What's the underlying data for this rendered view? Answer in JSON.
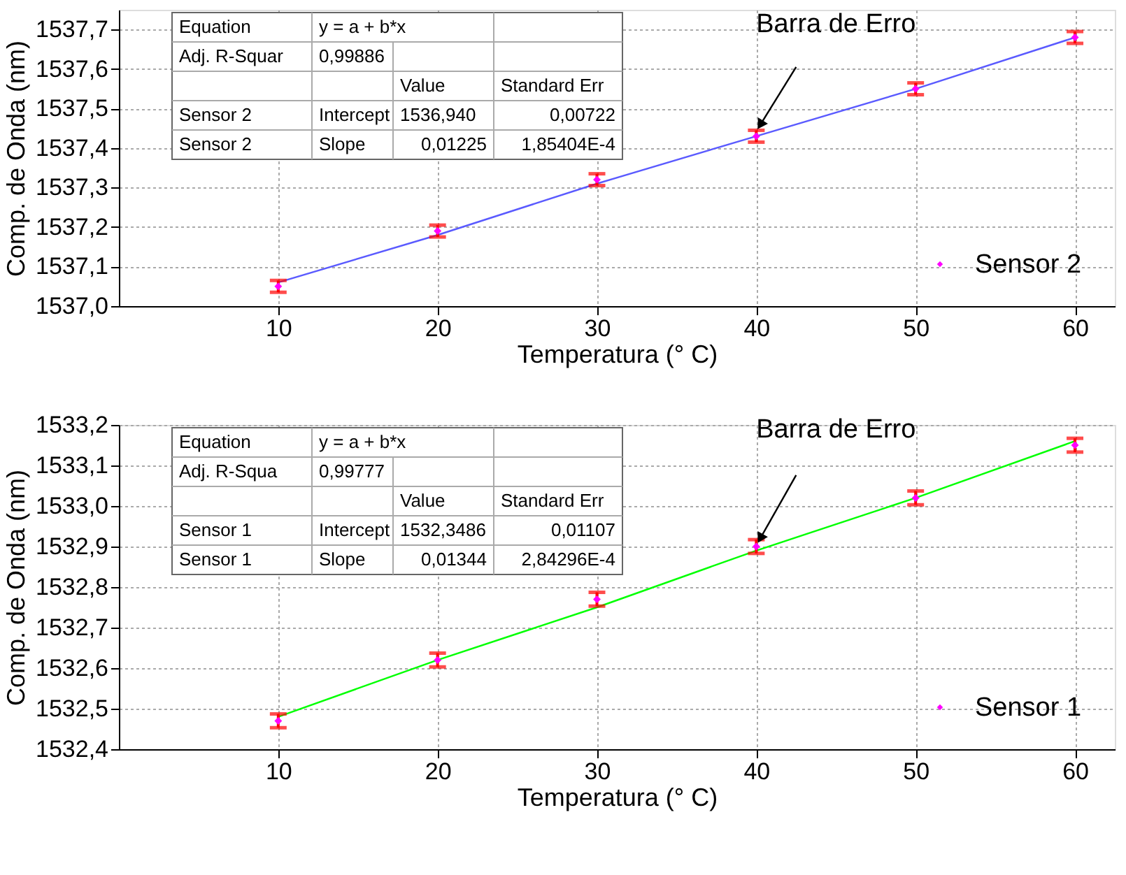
{
  "chart_data": [
    {
      "type": "scatter",
      "xlabel": "Temperatura (° C)",
      "ylabel": "Comp. de Onda (nm)",
      "xlim": [
        0,
        62.5
      ],
      "ylim": [
        1537.0,
        1537.75
      ],
      "xticks": [
        10,
        20,
        30,
        40,
        50,
        60
      ],
      "yticks": [
        {
          "value": 1537.0,
          "label": "1537,0"
        },
        {
          "value": 1537.1,
          "label": "1537,1"
        },
        {
          "value": 1537.2,
          "label": "1537,2"
        },
        {
          "value": 1537.3,
          "label": "1537,3"
        },
        {
          "value": 1537.4,
          "label": "1537,4"
        },
        {
          "value": 1537.5,
          "label": "1537,5"
        },
        {
          "value": 1537.6,
          "label": "1537,6"
        },
        {
          "value": 1537.7,
          "label": "1537,7"
        }
      ],
      "x": [
        10,
        20,
        30,
        40,
        50,
        60
      ],
      "series": [
        {
          "name": "Sensor 2",
          "color": "#ff00ff",
          "marker": "diamond",
          "values": [
            1537.05,
            1537.19,
            1537.32,
            1537.43,
            1537.55,
            1537.68
          ],
          "errors": [
            0.015,
            0.015,
            0.015,
            0.015,
            0.015,
            0.015
          ]
        },
        {
          "type": "line",
          "color": "#5a5aff",
          "line_style": "solid",
          "values": [
            1537.06,
            1537.18,
            1537.31,
            1537.43,
            1537.55,
            1537.68
          ]
        }
      ],
      "grid": true,
      "legend": "bottom right",
      "annotations": [
        {
          "text": "Barra de Erro",
          "x": 40,
          "y": 1537.44
        },
        "Equation",
        "y = a + b*x",
        "Adj. R-Squar",
        "0,99886",
        "Value",
        "Standard Err",
        "Sensor 2",
        "Intercept",
        "1536,940",
        "0,00722",
        "Sensor 2",
        "Slope",
        "0,01225",
        "1,85404E-4"
      ]
    },
    {
      "type": "scatter",
      "xlabel": "Temperatura (° C)",
      "ylabel": "Comp. de Onda (nm)",
      "xlim": [
        0,
        62.5
      ],
      "ylim": [
        1532.4,
        1533.2
      ],
      "xticks": [
        10,
        20,
        30,
        40,
        50,
        60
      ],
      "yticks": [
        {
          "value": 1532.4,
          "label": "1532,4"
        },
        {
          "value": 1532.5,
          "label": "1532,5"
        },
        {
          "value": 1532.6,
          "label": "1532,6"
        },
        {
          "value": 1532.7,
          "label": "1532,7"
        },
        {
          "value": 1532.8,
          "label": "1532,8"
        },
        {
          "value": 1532.9,
          "label": "1532,9"
        },
        {
          "value": 1533.0,
          "label": "1533,0"
        },
        {
          "value": 1533.1,
          "label": "1533,1"
        },
        {
          "value": 1533.2,
          "label": "1533,2"
        }
      ],
      "x": [
        10,
        20,
        30,
        40,
        50,
        60
      ],
      "series": [
        {
          "name": "Sensor 1",
          "color": "#ff00ff",
          "marker": "diamond",
          "values": [
            1532.47,
            1532.62,
            1532.77,
            1532.9,
            1533.02,
            1533.15
          ],
          "errors": [
            0.017,
            0.017,
            0.017,
            0.017,
            0.017,
            0.017
          ]
        },
        {
          "type": "line",
          "color": "#00ff00",
          "line_style": "solid",
          "values": [
            1532.48,
            1532.62,
            1532.75,
            1532.89,
            1533.02,
            1533.16
          ]
        }
      ],
      "grid": true,
      "legend": "bottom right",
      "annotations": [
        {
          "text": "Barra de Erro",
          "x": 40,
          "y": 1532.9
        },
        "Equation",
        "y = a + b*x",
        "Adj. R-Squa",
        "0,99777",
        "Value",
        "Standard Err",
        "Sensor 1",
        "Intercept",
        "1532,3486",
        "0,01107",
        "Sensor 1",
        "Slope",
        "0,01344",
        "2,84296E-4"
      ]
    }
  ]
}
